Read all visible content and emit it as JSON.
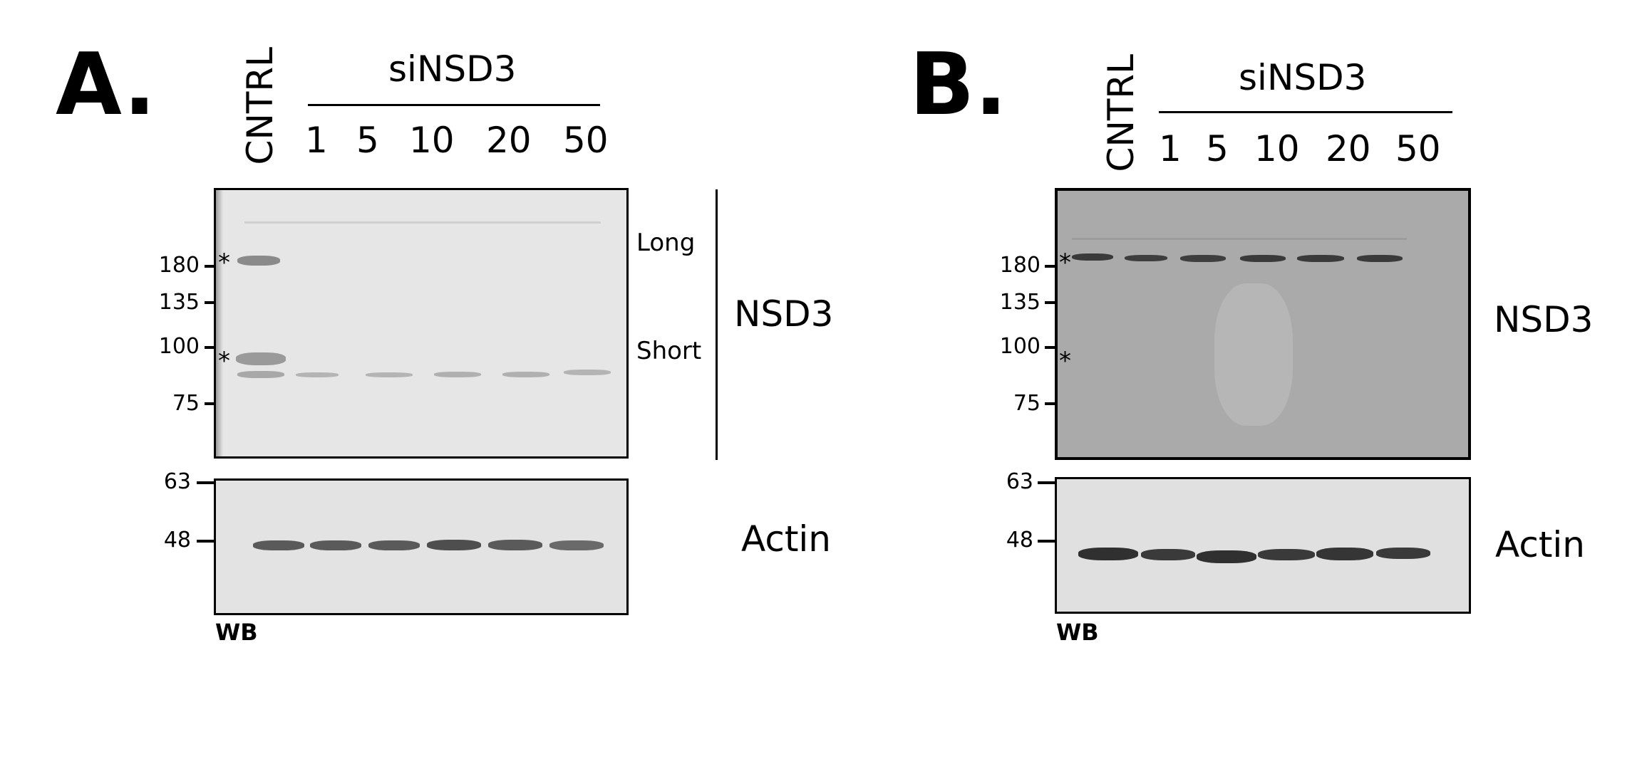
{
  "panel_a": {
    "letter": "A.",
    "control_label": "CNTRL",
    "treatment_label": "siNSD3",
    "doses": [
      "1",
      "5",
      "10",
      "20",
      "50"
    ],
    "nsd3_markers": [
      "180",
      "135",
      "100",
      "75"
    ],
    "actin_markers": [
      "63",
      "48"
    ],
    "star": "*",
    "long_label": "Long",
    "short_label": "Short",
    "nsd3_label": "NSD3",
    "actin_label": "Actin",
    "wb_label": "WB"
  },
  "panel_b": {
    "letter": "B.",
    "control_label": "CNTRL",
    "treatment_label": "siNSD3",
    "doses": [
      "1",
      "5",
      "10",
      "20",
      "50"
    ],
    "nsd3_markers": [
      "180",
      "135",
      "100",
      "75"
    ],
    "actin_markers": [
      "63",
      "48"
    ],
    "star": "*",
    "nsd3_label": "NSD3",
    "actin_label": "Actin",
    "wb_label": "WB"
  }
}
